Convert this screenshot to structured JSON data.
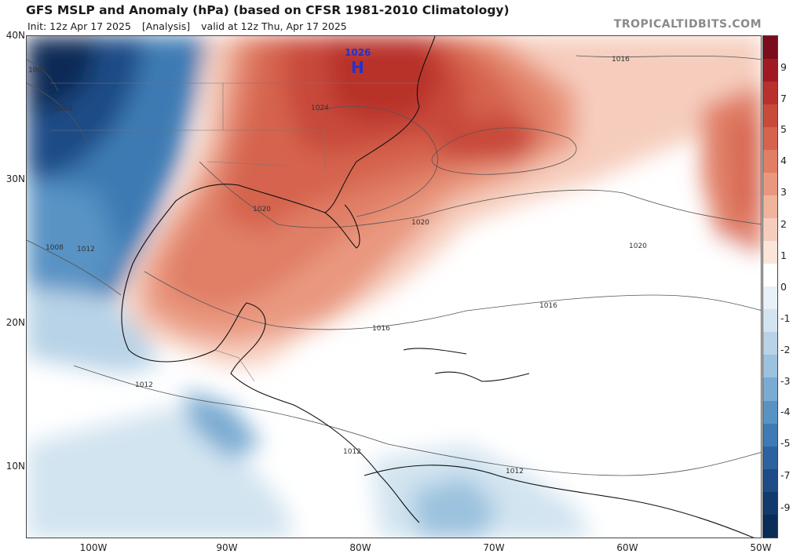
{
  "header": {
    "title": "GFS MSLP and Anomaly (hPa) (based on CFSR 1981-2010 Climatology)",
    "init": "Init: 12z Apr 17 2025",
    "analysis": "[Analysis]",
    "valid": "valid at 12z Thu, Apr 17 2025",
    "brand": "TROPICALTIDBITS.COM"
  },
  "axes": {
    "lat_labels": [
      "40N",
      "30N",
      "20N",
      "10N"
    ],
    "lon_labels": [
      "100W",
      "90W",
      "80W",
      "70W",
      "60W",
      "50W"
    ]
  },
  "colorbar": {
    "labels": [
      "9",
      "7",
      "5",
      "4",
      "3",
      "2",
      "1",
      "0",
      "-1",
      "-2",
      "-3",
      "-4",
      "-5",
      "-7",
      "-9"
    ],
    "colors": [
      "#7a0d1c",
      "#a01a24",
      "#b8312c",
      "#c84a3a",
      "#d6634e",
      "#e07e66",
      "#e9987f",
      "#f0b39c",
      "#f6cdbd",
      "#fbe5da",
      "#ffffff",
      "#e8f1f7",
      "#d2e4f0",
      "#b8d3e7",
      "#9bc2de",
      "#7aabd2",
      "#5993c4",
      "#3e7ab3",
      "#2c629e",
      "#1d4c86",
      "#123a6c",
      "#0b2c57"
    ]
  },
  "map": {
    "high": {
      "value": "1026",
      "letter": "H"
    },
    "isobar_labels": [
      "1016",
      "1004",
      "1000",
      "1024",
      "1020",
      "1020",
      "1020",
      "1008",
      "1012",
      "1016",
      "1016",
      "1012",
      "1012",
      "1012"
    ]
  }
}
